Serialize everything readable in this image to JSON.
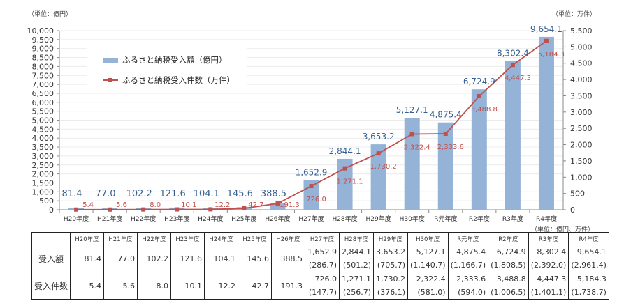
{
  "chart_data": {
    "type": "bar+line",
    "categories": [
      "H20年度",
      "H21年度",
      "H22年度",
      "H23年度",
      "H24年度",
      "H25年度",
      "H26年度",
      "H27年度",
      "H28年度",
      "H29年度",
      "H30年度",
      "R元年度",
      "R2年度",
      "R3年度",
      "R4年度"
    ],
    "series": [
      {
        "name": "ふるさと納税受入額（億円）",
        "type": "bar",
        "axis": "left",
        "color": "#95B3D7",
        "label_color": "#376092",
        "values": [
          81.4,
          77.0,
          102.2,
          121.6,
          104.1,
          145.6,
          388.5,
          1652.9,
          2844.1,
          3653.2,
          5127.1,
          4875.4,
          6724.9,
          8302.4,
          9654.1
        ],
        "labels": [
          "81.4",
          "77.0",
          "102.2",
          "121.6",
          "104.1",
          "145.6",
          "388.5",
          "1,652.9",
          "2,844.1",
          "3,653.2",
          "5,127.1",
          "4,875.4",
          "6,724.9",
          "8,302.4",
          "9,654.1"
        ]
      },
      {
        "name": "ふるさと納税受入件数（万件）",
        "type": "line",
        "axis": "right",
        "color": "#C0504D",
        "values": [
          5.4,
          5.6,
          8.0,
          10.1,
          12.2,
          42.7,
          191.3,
          726.0,
          1271.1,
          1730.2,
          2322.4,
          2333.6,
          3488.8,
          4447.3,
          5184.3
        ],
        "labels": [
          "5.4",
          "5.6",
          "8.0",
          "10.1",
          "12.2",
          "42.7",
          "191.3",
          "726.0",
          "1,271.1",
          "1,730.2",
          "2,322.4",
          "2,333.6",
          "3,488.8",
          "4,447.3",
          "5,184.3"
        ]
      }
    ],
    "left_axis": {
      "unit_label": "（単位：億円）",
      "ylim": [
        0,
        10000
      ],
      "step": 500
    },
    "right_axis": {
      "unit_label": "（単位：万件）",
      "ylim": [
        0,
        5500
      ],
      "step": 500
    },
    "grid": true,
    "legend": "top-left"
  },
  "table": {
    "unit": "（単位：億円、万件）",
    "headers": [
      "H20年度",
      "H21年度",
      "H22年度",
      "H23年度",
      "H24年度",
      "H25年度",
      "H26年度",
      "H27年度",
      "H28年度",
      "H29年度",
      "H30年度",
      "R元年度",
      "R2年度",
      "R3年度",
      "R4年度"
    ],
    "rows": [
      {
        "label": "受入額",
        "values": [
          "81.4",
          "77.0",
          "102.2",
          "121.6",
          "104.1",
          "145.6",
          "388.5",
          "1,652.9",
          "2,844.1",
          "3,653.2",
          "5,127.1",
          "4,875.4",
          "6,724.9",
          "8,302.4",
          "9,654.1"
        ],
        "sub": [
          "",
          "",
          "",
          "",
          "",
          "",
          "",
          "(286.7)",
          "(501.2)",
          "(705.7)",
          "(1,140.7)",
          "(1,166.7)",
          "(1,808.5)",
          "(2,392.0)",
          "(2,961.4)"
        ]
      },
      {
        "label": "受入件数",
        "values": [
          "5.4",
          "5.6",
          "8.0",
          "10.1",
          "12.2",
          "42.7",
          "191.3",
          "726.0",
          "1,271.1",
          "1,730.2",
          "2,322.4",
          "2,333.6",
          "3,488.8",
          "4,447.3",
          "5,184.3"
        ],
        "sub": [
          "",
          "",
          "",
          "",
          "",
          "",
          "",
          "(147.7)",
          "(256.7)",
          "(376.1)",
          "(581.0)",
          "(594.0)",
          "(1,006.5)",
          "(1,401.1)",
          "(1,738.7)"
        ]
      }
    ]
  }
}
